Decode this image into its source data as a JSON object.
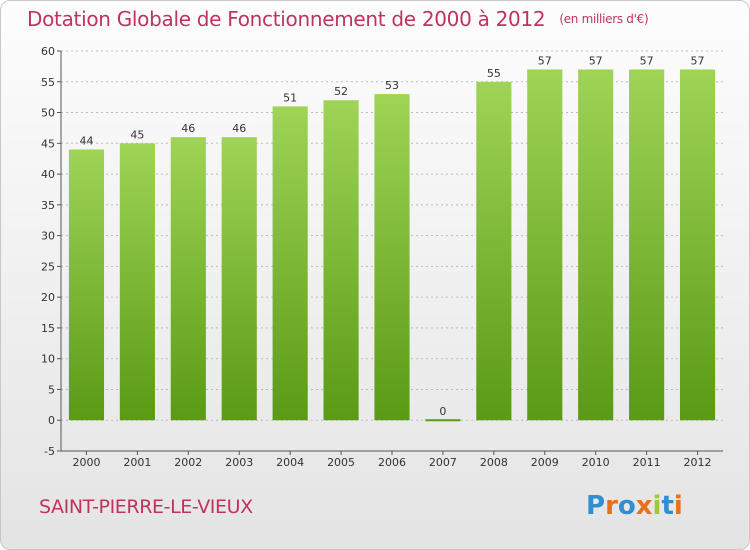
{
  "title": "Dotation Globale de Fonctionnement de 2000 à 2012",
  "subtitle": "(en milliers d'€)",
  "commune": "SAINT-PIERRE-LE-VIEUX",
  "logo": {
    "letters": [
      "P",
      "r",
      "o",
      "x",
      "i",
      "t",
      "i"
    ],
    "colors": [
      "#2f8fd0",
      "#e8701c",
      "#2f8fd0",
      "#e8701c",
      "#a0c83c",
      "#2f8fd0",
      "#e8701c"
    ]
  },
  "colors": {
    "bar_top": "#9fd457",
    "bar_bottom": "#5a9a15",
    "title": "#c0335c",
    "grid": "#bbbbbb"
  },
  "chart_data": {
    "type": "bar",
    "categories": [
      "2000",
      "2001",
      "2002",
      "2003",
      "2004",
      "2005",
      "2006",
      "2007",
      "2008",
      "2009",
      "2010",
      "2011",
      "2012"
    ],
    "values": [
      44,
      45,
      46,
      46,
      51,
      52,
      53,
      0,
      55,
      57,
      57,
      57,
      57
    ],
    "ylim": [
      -5,
      60
    ],
    "yticks": [
      -5,
      0,
      5,
      10,
      15,
      20,
      25,
      30,
      35,
      40,
      45,
      50,
      55,
      60
    ],
    "grid": true,
    "legend": "none",
    "xlabel": "",
    "ylabel": ""
  }
}
